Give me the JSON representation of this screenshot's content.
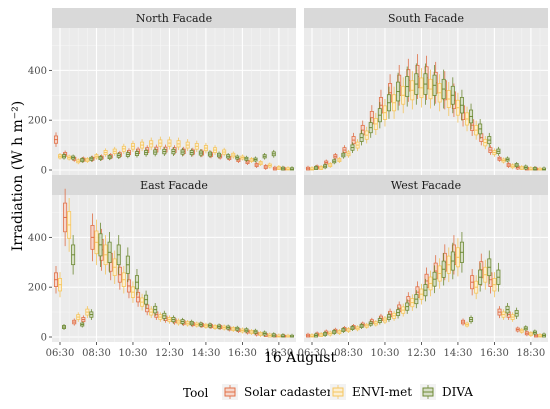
{
  "chart_data": {
    "type": "boxplot",
    "xlabel": "16 August",
    "ylabel": "Irradiation (W h m⁻²)",
    "ylim": [
      0,
      550
    ],
    "yticks": [
      0,
      200,
      400
    ],
    "times": [
      "06:30",
      "07:00",
      "07:30",
      "08:00",
      "08:30",
      "09:00",
      "09:30",
      "10:00",
      "10:30",
      "11:00",
      "11:30",
      "12:00",
      "12:30",
      "13:00",
      "13:30",
      "14:00",
      "14:30",
      "15:00",
      "15:30",
      "16:00",
      "16:30",
      "17:00",
      "17:30",
      "18:00",
      "18:30",
      "19:00"
    ],
    "xtick_labels": [
      "06:30",
      "08:30",
      "10:30",
      "12:30",
      "14:30",
      "16:30",
      "18:30"
    ],
    "legend": {
      "title": "Tool",
      "position": "bottom",
      "entries": [
        {
          "name": "Solar cadaster",
          "color": "#e07048"
        },
        {
          "name": "ENVI-met",
          "color": "#f5c65f"
        },
        {
          "name": "DIVA",
          "color": "#6e8a35"
        }
      ]
    },
    "facets": [
      {
        "title": "North Facade",
        "series": [
          {
            "tool": "Solar cadaster",
            "median": [
              122,
              63,
              45,
              42,
              45,
              50,
              55,
              62,
              70,
              75,
              80,
              82,
              82,
              80,
              75,
              72,
              68,
              62,
              55,
              48,
              40,
              32,
              20,
              12,
              5,
              3
            ]
          },
          {
            "tool": "ENVI-met",
            "median": [
              55,
              50,
              35,
              40,
              55,
              70,
              75,
              85,
              95,
              100,
              105,
              108,
              108,
              105,
              100,
              95,
              88,
              80,
              72,
              60,
              50,
              40,
              28,
              18,
              8,
              3
            ]
          },
          {
            "tool": "DIVA",
            "median": [
              55,
              50,
              40,
              45,
              48,
              52,
              58,
              62,
              66,
              70,
              72,
              74,
              74,
              72,
              70,
              68,
              64,
              60,
              55,
              50,
              45,
              42,
              55,
              65,
              5,
              3
            ]
          }
        ]
      },
      {
        "title": "South Facade",
        "series": [
          {
            "tool": "Solar cadaster",
            "median": [
              5,
              10,
              30,
              55,
              80,
              120,
              160,
              210,
              260,
              310,
              340,
              360,
              375,
              370,
              350,
              320,
              280,
              230,
              180,
              130,
              80,
              45,
              20,
              10,
              5,
              2
            ]
          },
          {
            "tool": "ENVI-met",
            "median": [
              3,
              8,
              20,
              40,
              65,
              100,
              140,
              185,
              230,
              270,
              300,
              320,
              330,
              325,
              310,
              285,
              250,
              205,
              160,
              110,
              70,
              38,
              15,
              8,
              3,
              1
            ]
          },
          {
            "tool": "DIVA",
            "median": [
              8,
              15,
              35,
              60,
              90,
              130,
              170,
              220,
              270,
              315,
              335,
              345,
              345,
              340,
              325,
              300,
              260,
              215,
              165,
              120,
              75,
              42,
              20,
              10,
              4,
              2
            ]
          }
        ]
      },
      {
        "title": "East Facade",
        "series": [
          {
            "tool": "Solar cadaster",
            "median": [
              230,
              480,
              60,
              70,
              400,
              350,
              300,
              250,
              205,
              160,
              115,
              90,
              75,
              65,
              58,
              52,
              48,
              44,
              40,
              34,
              28,
              22,
              14,
              8,
              3,
              1
            ]
          },
          {
            "tool": "ENVI-met",
            "median": [
              210,
              450,
              80,
              100,
              380,
              330,
              280,
              230,
              180,
              140,
              100,
              80,
              70,
              60,
              55,
              50,
              45,
              40,
              38,
              32,
              26,
              20,
              12,
              6,
              2,
              1
            ]
          },
          {
            "tool": "DIVA",
            "median": [
              40,
              330,
              50,
              90,
              370,
              340,
              330,
              290,
              220,
              150,
              110,
              85,
              70,
              62,
              56,
              50,
              46,
              42,
              38,
              33,
              27,
              21,
              14,
              7,
              3,
              1
            ]
          }
        ]
      },
      {
        "title": "West Facade",
        "series": [
          {
            "tool": "Solar cadaster",
            "median": [
              5,
              10,
              18,
              25,
              32,
              40,
              50,
              62,
              75,
              92,
              115,
              145,
              180,
              225,
              265,
              300,
              330,
              60,
              220,
              270,
              230,
              100,
              90,
              30,
              15,
              5
            ]
          },
          {
            "tool": "ENVI-met",
            "median": [
              3,
              8,
              14,
              20,
              28,
              35,
              45,
              55,
              68,
              85,
              108,
              138,
              172,
              215,
              255,
              290,
              320,
              50,
              200,
              250,
              210,
              90,
              80,
              25,
              12,
              4
            ]
          },
          {
            "tool": "DIVA",
            "median": [
              6,
              12,
              20,
              28,
              36,
              44,
              54,
              66,
              80,
              98,
              122,
              152,
              188,
              232,
              272,
              305,
              340,
              70,
              240,
              280,
              240,
              110,
              95,
              35,
              18,
              6
            ]
          }
        ]
      }
    ]
  }
}
